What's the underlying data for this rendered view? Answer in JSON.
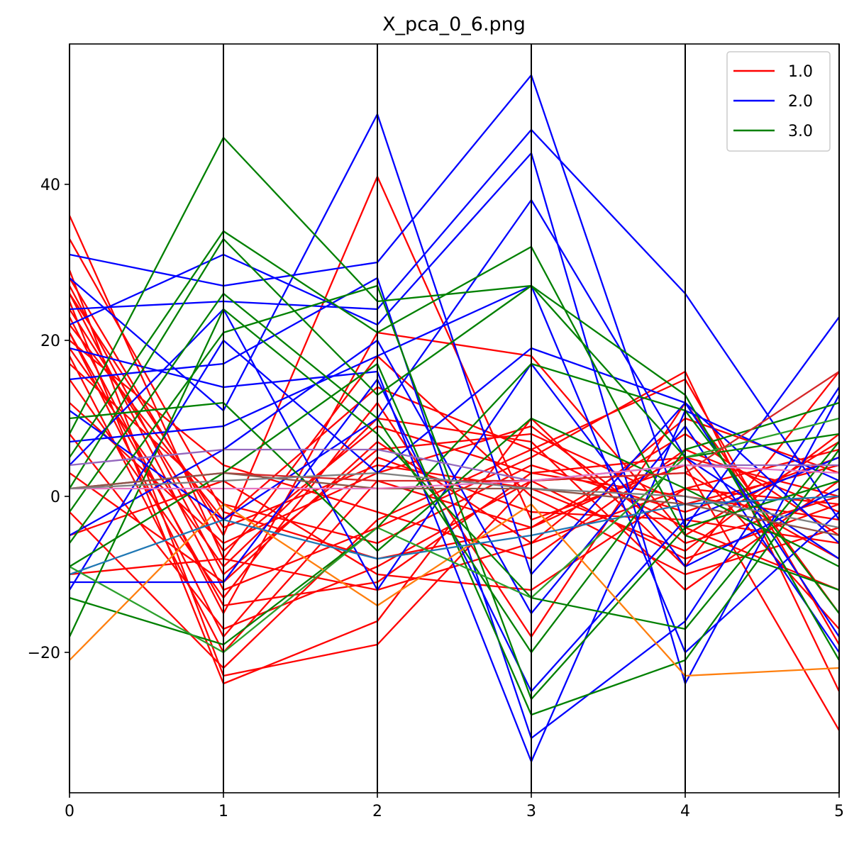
{
  "chart_data": {
    "type": "parallel_coordinates",
    "title": "X_pca_0_6.png",
    "xlabel": "",
    "ylabel": "",
    "x": [
      0,
      1,
      2,
      3,
      4,
      5
    ],
    "x_tick_labels": [
      "0",
      "1",
      "2",
      "3",
      "4",
      "5"
    ],
    "y_tick_values": [
      -20,
      0,
      20,
      40
    ],
    "y_tick_labels": [
      "−20",
      "0",
      "20",
      "40"
    ],
    "xlim": [
      0,
      5
    ],
    "ylim": [
      -38,
      58
    ],
    "grid": "vertical axis lines",
    "legend_position": "top-right",
    "legend": [
      {
        "label": "1.0",
        "color": "#ff0000"
      },
      {
        "label": "2.0",
        "color": "#0000ff"
      },
      {
        "label": "3.0",
        "color": "#008000"
      }
    ],
    "series": [
      {
        "class": "1.0",
        "color": "#ff0000",
        "values": [
          36,
          -8,
          -12,
          -6,
          1,
          -1
        ]
      },
      {
        "class": "1.0",
        "color": "#ff0000",
        "values": [
          33,
          -2,
          -8,
          -4,
          5,
          0
        ]
      },
      {
        "class": "1.0",
        "color": "#ff0000",
        "values": [
          29,
          -23,
          -19,
          2,
          -8,
          -1
        ]
      },
      {
        "class": "1.0",
        "color": "#ff0000",
        "values": [
          28,
          -5,
          41,
          -3,
          4,
          -30
        ]
      },
      {
        "class": "1.0",
        "color": "#ff0000",
        "values": [
          27,
          -10,
          6,
          8,
          -1,
          4
        ]
      },
      {
        "class": "1.0",
        "color": "#ff0000",
        "values": [
          26,
          -12,
          -4,
          5,
          16,
          -25
        ]
      },
      {
        "class": "1.0",
        "color": "#ff0000",
        "values": [
          25,
          -24,
          -16,
          10,
          -9,
          16
        ]
      },
      {
        "class": "1.0",
        "color": "#ff0000",
        "values": [
          24,
          -7,
          9,
          3,
          0,
          -3
        ]
      },
      {
        "class": "1.0",
        "color": "#ff0000",
        "values": [
          23,
          -15,
          21,
          18,
          -5,
          7
        ]
      },
      {
        "class": "1.0",
        "color": "#ff0000",
        "values": [
          22,
          -3,
          14,
          6,
          15,
          -19
        ]
      },
      {
        "class": "1.0",
        "color": "#ff0000",
        "values": [
          21,
          -18,
          5,
          -2,
          -3,
          -6
        ]
      },
      {
        "class": "1.0",
        "color": "#ff0000",
        "values": [
          20,
          4,
          -2,
          -8,
          6,
          -2
        ]
      },
      {
        "class": "1.0",
        "color": "#ff0000",
        "values": [
          19,
          -9,
          10,
          7,
          -12,
          2
        ]
      },
      {
        "class": "1.0",
        "color": "#ff0000",
        "values": [
          18,
          -20,
          2,
          -4,
          8,
          -5
        ]
      },
      {
        "class": "1.0",
        "color": "#ff0000",
        "values": [
          17,
          -1,
          -6,
          4,
          -2,
          5
        ]
      },
      {
        "class": "1.0",
        "color": "#ff0000",
        "values": [
          15,
          -13,
          12,
          -18,
          12,
          -15
        ]
      },
      {
        "class": "1.0",
        "color": "#ff0000",
        "values": [
          12,
          -6,
          3,
          9,
          -6,
          0
        ]
      },
      {
        "class": "1.0",
        "color": "#ff0000",
        "values": [
          8,
          -17,
          -9,
          2,
          3,
          -8
        ]
      },
      {
        "class": "1.0",
        "color": "#ff0000",
        "values": [
          3,
          -11,
          7,
          -6,
          10,
          3
        ]
      },
      {
        "class": "1.0",
        "color": "#ff0000",
        "values": [
          -2,
          -22,
          -3,
          6,
          -4,
          -12
        ]
      },
      {
        "class": "1.0",
        "color": "#ff0000",
        "values": [
          -5,
          2,
          -10,
          -12,
          1,
          6
        ]
      },
      {
        "class": "1.0",
        "color": "#ff0000",
        "values": [
          -10,
          -8,
          18,
          0,
          -10,
          -4
        ]
      },
      {
        "class": "1.0",
        "color": "#ff0000",
        "values": [
          21,
          -14,
          -11,
          3,
          5,
          -17
        ]
      },
      {
        "class": "1.0",
        "color": "#ff0000",
        "values": [
          26,
          -4,
          4,
          1,
          -7,
          8
        ]
      },
      {
        "class": "2.0",
        "color": "#0000ff",
        "values": [
          31,
          27,
          30,
          54,
          -4,
          23
        ]
      },
      {
        "class": "2.0",
        "color": "#0000ff",
        "values": [
          28,
          11,
          49,
          -10,
          12,
          -18
        ]
      },
      {
        "class": "2.0",
        "color": "#0000ff",
        "values": [
          24,
          25,
          24,
          47,
          26,
          -3
        ]
      },
      {
        "class": "2.0",
        "color": "#0000ff",
        "values": [
          22,
          31,
          22,
          44,
          -24,
          13
        ]
      },
      {
        "class": "2.0",
        "color": "#0000ff",
        "values": [
          19,
          14,
          16,
          -34,
          11,
          2
        ]
      },
      {
        "class": "2.0",
        "color": "#0000ff",
        "values": [
          15,
          17,
          28,
          -31,
          -16,
          14
        ]
      },
      {
        "class": "2.0",
        "color": "#0000ff",
        "values": [
          11,
          -3,
          10,
          38,
          5,
          -8
        ]
      },
      {
        "class": "2.0",
        "color": "#0000ff",
        "values": [
          7,
          9,
          18,
          27,
          -20,
          -2
        ]
      },
      {
        "class": "2.0",
        "color": "#0000ff",
        "values": [
          4,
          24,
          -12,
          17,
          -9,
          1
        ]
      },
      {
        "class": "2.0",
        "color": "#0000ff",
        "values": [
          -5,
          6,
          20,
          -15,
          9,
          -20
        ]
      },
      {
        "class": "2.0",
        "color": "#0000ff",
        "values": [
          -11,
          -11,
          15,
          -25,
          -3,
          5
        ]
      },
      {
        "class": "2.0",
        "color": "#0000ff",
        "values": [
          -12,
          20,
          3,
          19,
          12,
          -6
        ]
      },
      {
        "class": "3.0",
        "color": "#008000",
        "values": [
          8,
          46,
          25,
          27,
          5,
          8
        ]
      },
      {
        "class": "3.0",
        "color": "#008000",
        "values": [
          5,
          34,
          21,
          32,
          -5,
          -12
        ]
      },
      {
        "class": "3.0",
        "color": "#008000",
        "values": [
          1,
          33,
          13,
          27,
          13,
          -21
        ]
      },
      {
        "class": "3.0",
        "color": "#008000",
        "values": [
          -2,
          26,
          10,
          -20,
          6,
          12
        ]
      },
      {
        "class": "3.0",
        "color": "#008000",
        "values": [
          -6,
          21,
          27,
          -26,
          -4,
          2
        ]
      },
      {
        "class": "3.0",
        "color": "#008000",
        "values": [
          -9,
          3,
          17,
          -28,
          -21,
          6
        ]
      },
      {
        "class": "3.0",
        "color": "#008000",
        "values": [
          -13,
          -19,
          -4,
          17,
          11,
          -15
        ]
      },
      {
        "class": "3.0",
        "color": "#008000",
        "values": [
          -18,
          24,
          8,
          -13,
          -17,
          7
        ]
      },
      {
        "class": "3.0",
        "color": "#008000",
        "values": [
          10,
          12,
          -7,
          10,
          1,
          -9
        ]
      },
      {
        "class": "4",
        "color": "#ff7f0e",
        "values": [
          -21,
          -1,
          -14,
          -1,
          -23,
          -22
        ]
      },
      {
        "class": "5",
        "color": "#1f77b4",
        "values": [
          -10,
          -3,
          -8,
          -5,
          -1,
          0
        ]
      },
      {
        "class": "6",
        "color": "#2ca02c",
        "values": [
          -9,
          -20,
          -4,
          -13,
          5,
          10
        ]
      },
      {
        "class": "7",
        "color": "#d62728",
        "values": [
          1,
          3,
          2,
          2,
          3,
          16
        ]
      },
      {
        "class": "8",
        "color": "#9467bd",
        "values": [
          4,
          6,
          6,
          2,
          4,
          4
        ]
      },
      {
        "class": "9",
        "color": "#8c564b",
        "values": [
          1,
          3,
          1,
          1,
          -1,
          -5
        ]
      },
      {
        "class": "10",
        "color": "#e377c2",
        "values": [
          1,
          1,
          1,
          2,
          4,
          3
        ]
      },
      {
        "class": "11",
        "color": "#7f7f7f",
        "values": [
          1,
          2,
          3,
          1,
          0,
          -4
        ]
      }
    ]
  }
}
